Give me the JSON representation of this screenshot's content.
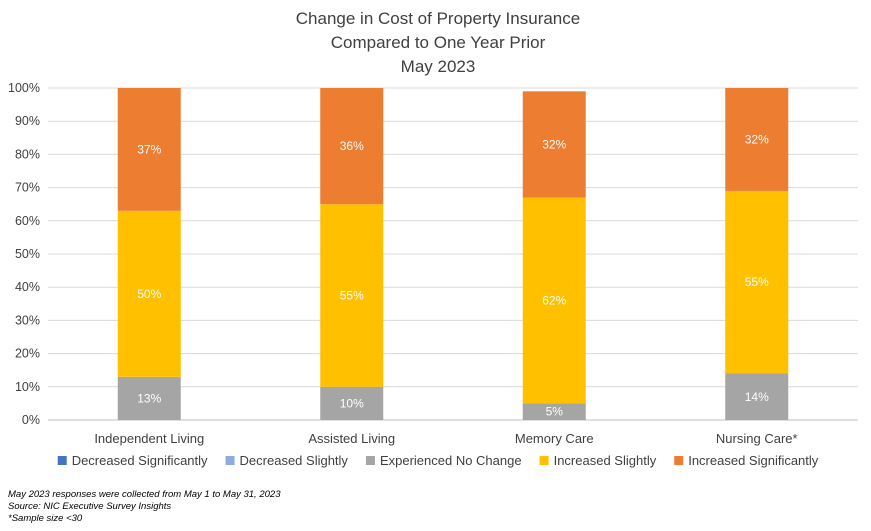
{
  "chart_data": {
    "type": "bar",
    "stacked": true,
    "title": [
      "Change in Cost of Property Insurance",
      "Compared to One Year Prior",
      "May 2023"
    ],
    "categories": [
      "Independent Living",
      "Assisted Living",
      "Memory Care",
      "Nursing Care*"
    ],
    "y_ticks": [
      "0%",
      "10%",
      "20%",
      "30%",
      "40%",
      "50%",
      "60%",
      "70%",
      "80%",
      "90%",
      "100%"
    ],
    "ylim": [
      0,
      100
    ],
    "series": [
      {
        "name": "Decreased Significantly",
        "color": "#4472C4",
        "values": [
          0,
          0,
          0,
          0
        ]
      },
      {
        "name": "Decreased Slightly",
        "color": "#8FAADC",
        "values": [
          0,
          0,
          0,
          0
        ]
      },
      {
        "name": "Experienced No Change",
        "color": "#A5A5A5",
        "values": [
          13,
          10,
          5,
          14
        ],
        "labels": [
          "13%",
          "10%",
          "5%",
          "14%"
        ]
      },
      {
        "name": "Increased Slightly",
        "color": "#FFC000",
        "values": [
          50,
          55,
          62,
          55
        ],
        "labels": [
          "50%",
          "55%",
          "62%",
          "55%"
        ]
      },
      {
        "name": "Increased Significantly",
        "color": "#ED7D31",
        "values": [
          37,
          36,
          32,
          32
        ],
        "labels": [
          "37%",
          "36%",
          "32%",
          "32%"
        ]
      }
    ],
    "gridlines": true,
    "legend_position": "bottom"
  },
  "footnotes": [
    "May 2023 responses were collected from May 1 to May 31, 2023",
    "Source: NIC Executive Survey Insights",
    "*Sample size <30"
  ]
}
